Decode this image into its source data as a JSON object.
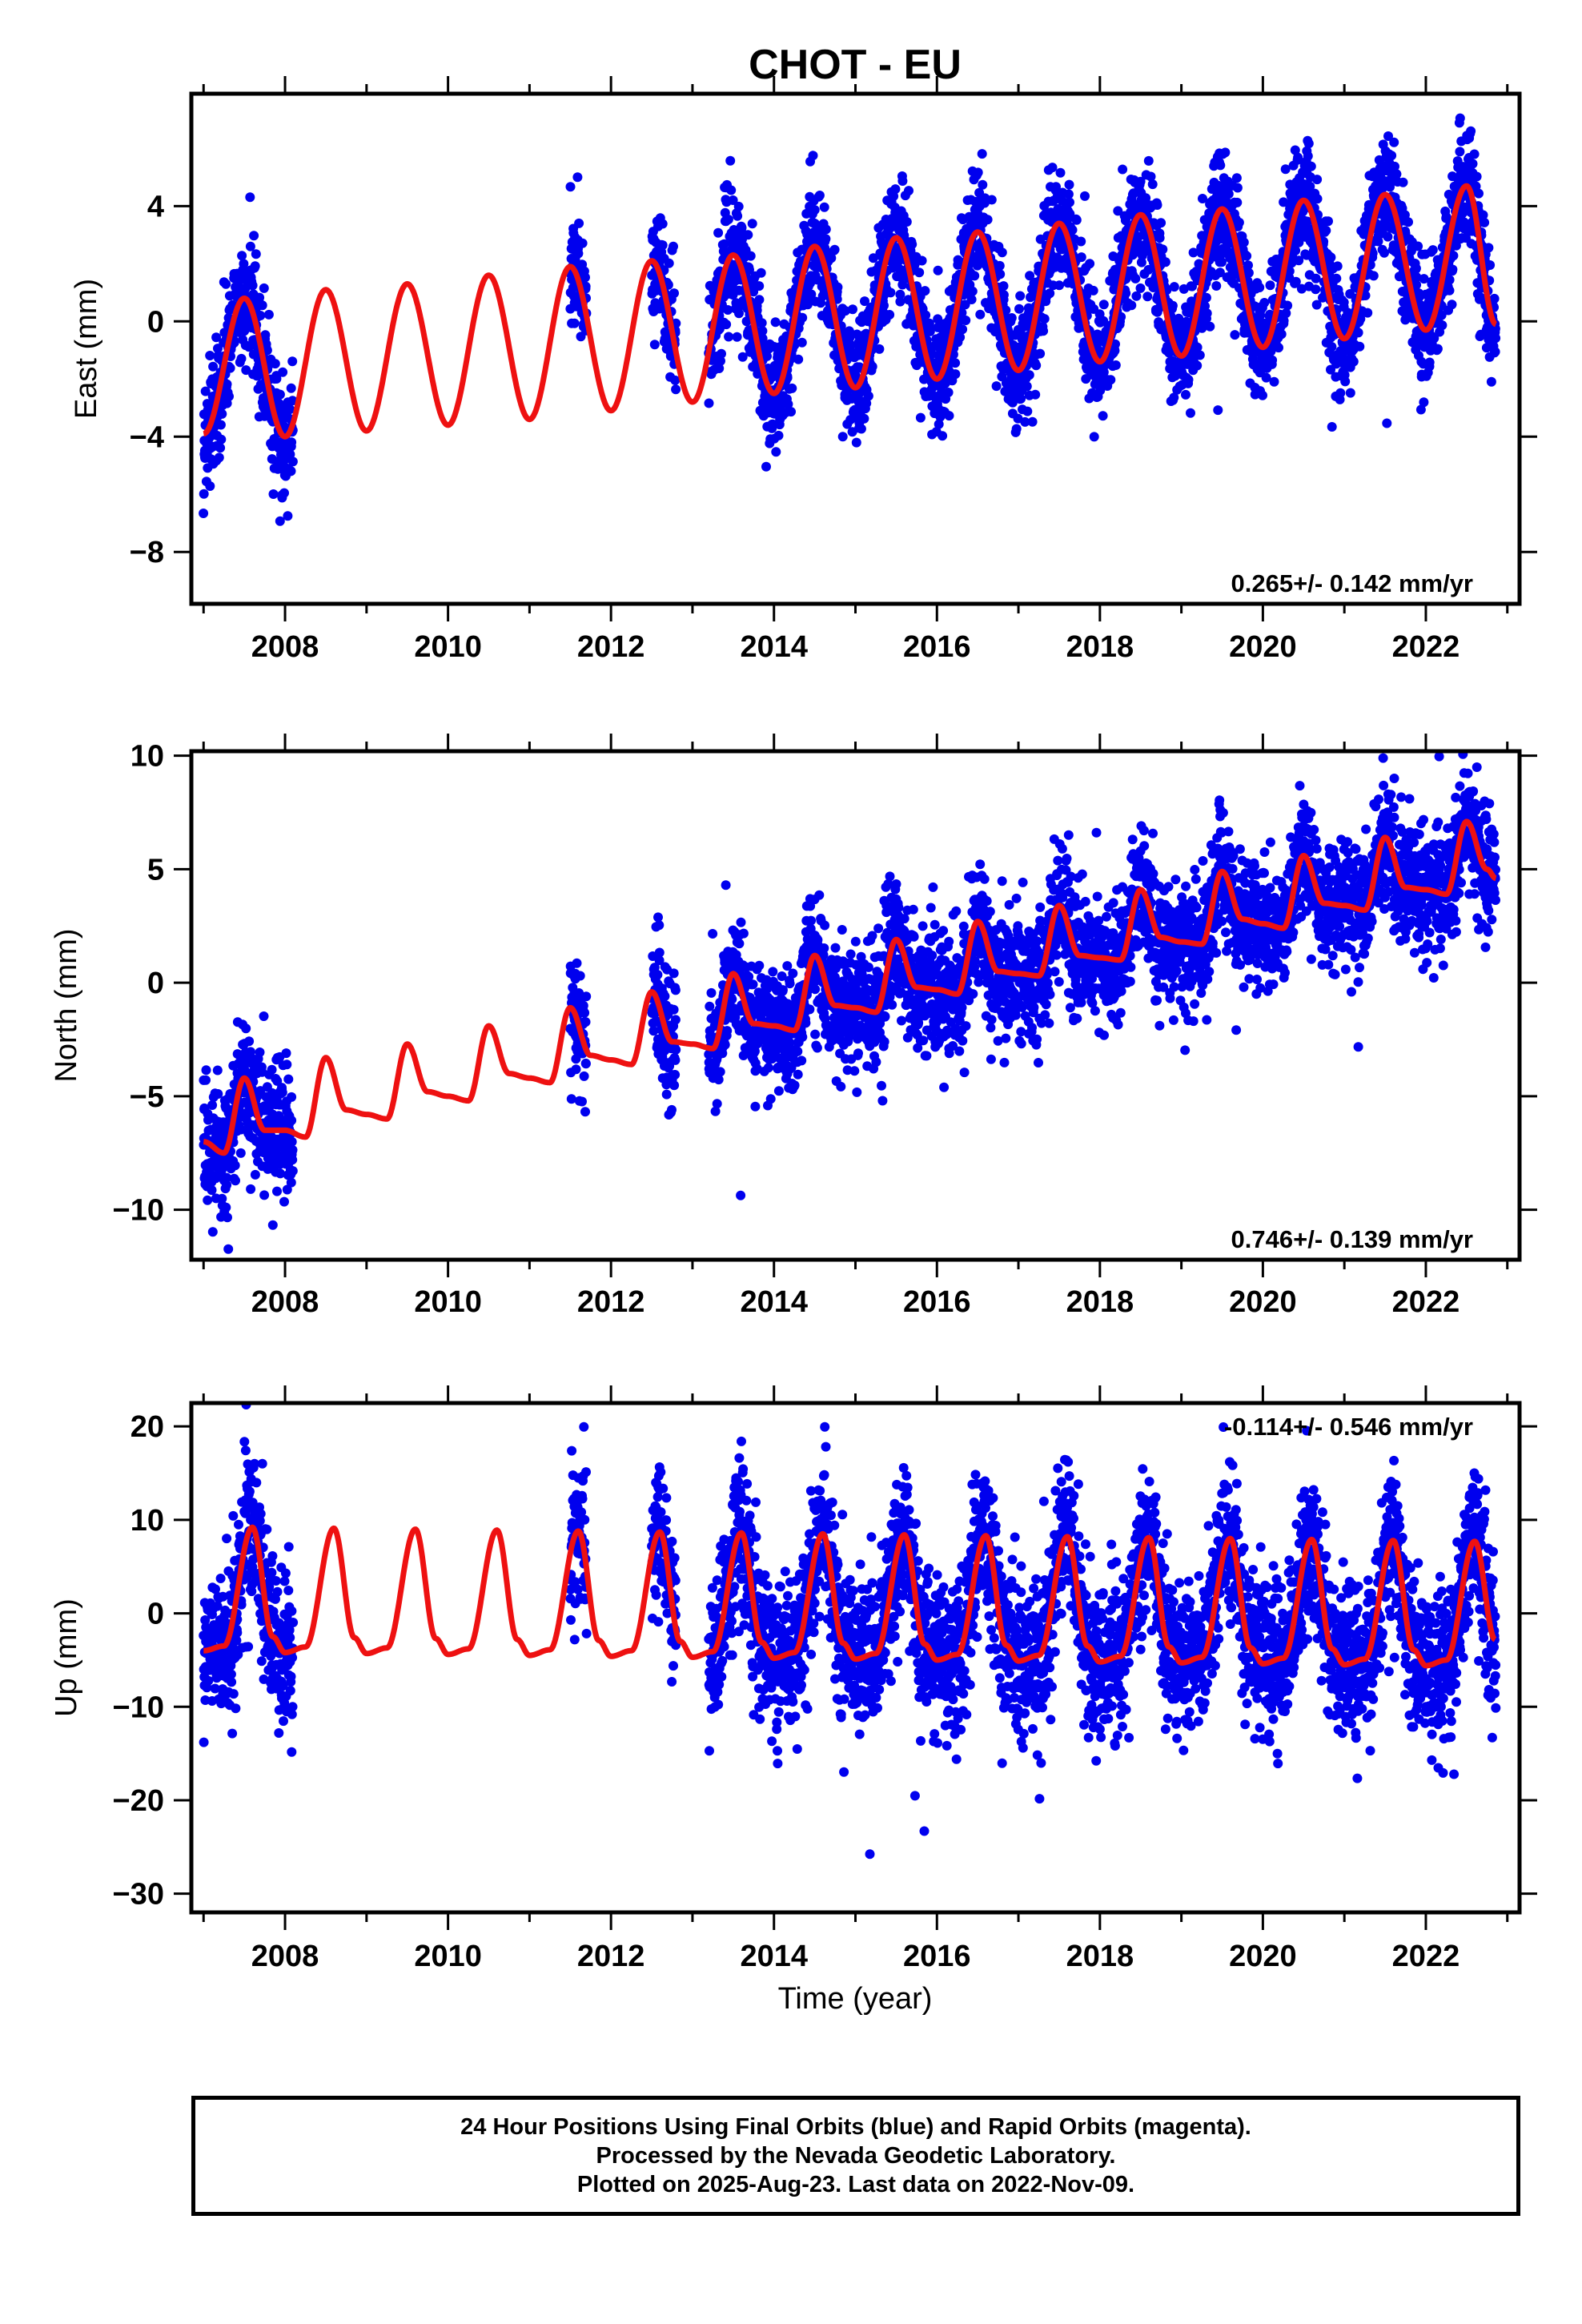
{
  "figure": {
    "title": "CHOT - EU",
    "xlabel": "Time (year)"
  },
  "colors": {
    "points": "#0000ee",
    "model": "#ee1111",
    "frame": "#000000"
  },
  "chart_data": [
    {
      "type": "scatter",
      "panel": "east",
      "ylabel": "East (mm)",
      "xlim": [
        2006.85,
        2023.15
      ],
      "ylim": [
        -9.8,
        7.9
      ],
      "yticks": [
        -8,
        -4,
        0,
        4
      ],
      "ytick_labels": [
        "−8",
        "−4",
        "0",
        "4"
      ],
      "xticks": [
        2008,
        2010,
        2012,
        2014,
        2016,
        2018,
        2020,
        2022
      ],
      "xtick_labels": [
        "2008",
        "2010",
        "2012",
        "2014",
        "2016",
        "2018",
        "2020",
        "2022"
      ],
      "rate_label": "0.265+/- 0.142 mm/yr",
      "rate_label_position": "bottom-right",
      "series": [
        {
          "kind": "points",
          "segments": [
            [
              2007.0,
              2008.1
            ],
            [
              2011.5,
              2011.7
            ],
            [
              2012.5,
              2012.8
            ],
            [
              2013.2,
              2022.86
            ]
          ],
          "model_offset": [
            -3.9,
            0.27
          ],
          "seasonal_amplitude": [
            2.4,
            2.5
          ],
          "noise_mm": 1.0
        },
        {
          "kind": "model",
          "x": [
            2007.0,
            2007.5,
            2008.0,
            2008.5,
            2009.0,
            2009.5,
            2010.0,
            2010.5,
            2011.0,
            2011.5,
            2012.0,
            2012.5,
            2013.0,
            2013.5,
            2014.0,
            2014.5,
            2015.0,
            2015.5,
            2016.0,
            2016.5,
            2017.0,
            2017.5,
            2018.0,
            2018.5,
            2019.0,
            2019.5,
            2020.0,
            2020.5,
            2021.0,
            2021.5,
            2022.0,
            2022.5,
            2022.86
          ],
          "y": [
            -3.9,
            0.8,
            -4.0,
            1.1,
            -3.8,
            1.3,
            -3.6,
            1.6,
            -3.4,
            1.9,
            -3.1,
            2.1,
            -2.8,
            2.3,
            -2.5,
            2.6,
            -2.3,
            2.9,
            -2.0,
            3.1,
            -1.7,
            3.4,
            -1.4,
            3.7,
            -1.2,
            3.9,
            -0.9,
            4.2,
            -0.6,
            4.4,
            -0.3,
            4.7,
            -0.1
          ]
        }
      ]
    },
    {
      "type": "scatter",
      "panel": "north",
      "ylabel": "North (mm)",
      "xlim": [
        2006.85,
        2023.15
      ],
      "ylim": [
        -12.2,
        10.2
      ],
      "yticks": [
        -10,
        -5,
        0,
        5,
        10
      ],
      "ytick_labels": [
        "−10",
        "−5",
        "0",
        "5",
        "10"
      ],
      "xticks": [
        2008,
        2010,
        2012,
        2014,
        2016,
        2018,
        2020,
        2022
      ],
      "xtick_labels": [
        "2008",
        "2010",
        "2012",
        "2014",
        "2016",
        "2018",
        "2020",
        "2022"
      ],
      "rate_label": "0.746+/- 0.139 mm/yr",
      "rate_label_position": "bottom-right",
      "series": [
        {
          "kind": "points",
          "segments": [
            [
              2007.0,
              2008.1
            ],
            [
              2011.5,
              2011.7
            ],
            [
              2012.5,
              2012.8
            ],
            [
              2013.2,
              2022.86
            ]
          ],
          "noise_mm": 1.3
        },
        {
          "kind": "model",
          "x": [
            2007.0,
            2007.25,
            2007.5,
            2007.75,
            2008.0,
            2008.25,
            2008.5,
            2008.75,
            2009.0,
            2009.25,
            2009.5,
            2009.75,
            2010.0,
            2010.25,
            2010.5,
            2010.75,
            2011.0,
            2011.25,
            2011.5,
            2011.75,
            2012.0,
            2012.25,
            2012.5,
            2012.75,
            2013.0,
            2013.25,
            2013.5,
            2013.75,
            2014.0,
            2014.25,
            2014.5,
            2014.75,
            2015.0,
            2015.25,
            2015.5,
            2015.75,
            2016.0,
            2016.25,
            2016.5,
            2016.75,
            2017.0,
            2017.25,
            2017.5,
            2017.75,
            2018.0,
            2018.25,
            2018.5,
            2018.75,
            2019.0,
            2019.25,
            2019.5,
            2019.75,
            2020.0,
            2020.25,
            2020.5,
            2020.75,
            2021.0,
            2021.25,
            2021.5,
            2021.75,
            2022.0,
            2022.25,
            2022.5,
            2022.75,
            2022.86
          ],
          "y": [
            -7.0,
            -7.5,
            -4.2,
            -6.5,
            -6.5,
            -6.8,
            -3.3,
            -5.6,
            -5.8,
            -6.0,
            -2.7,
            -4.8,
            -5.0,
            -5.2,
            -1.9,
            -4.0,
            -4.2,
            -4.4,
            -1.1,
            -3.2,
            -3.4,
            -3.6,
            -0.4,
            -2.6,
            -2.7,
            -2.9,
            0.4,
            -1.8,
            -1.9,
            -2.1,
            1.2,
            -1.0,
            -1.1,
            -1.3,
            1.9,
            -0.2,
            -0.3,
            -0.5,
            2.7,
            0.5,
            0.4,
            0.3,
            3.4,
            1.2,
            1.1,
            1.0,
            4.1,
            2.0,
            1.8,
            1.7,
            4.9,
            2.8,
            2.6,
            2.4,
            5.6,
            3.5,
            3.4,
            3.2,
            6.4,
            4.2,
            4.1,
            3.9,
            7.1,
            5.0,
            4.6
          ]
        }
      ]
    },
    {
      "type": "scatter",
      "panel": "up",
      "ylabel": "Up (mm)",
      "xlim": [
        2006.85,
        2023.15
      ],
      "ylim": [
        -32.0,
        22.5
      ],
      "yticks": [
        -30,
        -20,
        -10,
        0,
        10,
        20
      ],
      "ytick_labels": [
        "−30",
        "−20",
        "−10",
        "0",
        "10",
        "20"
      ],
      "xticks": [
        2008,
        2010,
        2012,
        2014,
        2016,
        2018,
        2020,
        2022
      ],
      "xtick_labels": [
        "2008",
        "2010",
        "2012",
        "2014",
        "2016",
        "2018",
        "2020",
        "2022"
      ],
      "rate_label": "-0.114+/- 0.546 mm/yr",
      "rate_label_position": "top-right",
      "series": [
        {
          "kind": "points",
          "segments": [
            [
              2007.0,
              2008.1
            ],
            [
              2011.5,
              2011.7
            ],
            [
              2012.5,
              2012.8
            ],
            [
              2013.2,
              2022.86
            ]
          ],
          "noise_mm": 4.0
        },
        {
          "kind": "model",
          "x": [
            2007.0,
            2007.25,
            2007.6,
            2007.85,
            2008.0,
            2008.25,
            2008.6,
            2008.85,
            2009.0,
            2009.25,
            2009.6,
            2009.85,
            2010.0,
            2010.25,
            2010.6,
            2010.85,
            2011.0,
            2011.25,
            2011.6,
            2011.85,
            2012.0,
            2012.25,
            2012.6,
            2012.85,
            2013.0,
            2013.25,
            2013.6,
            2013.85,
            2014.0,
            2014.25,
            2014.6,
            2014.85,
            2015.0,
            2015.25,
            2015.6,
            2015.85,
            2016.0,
            2016.25,
            2016.6,
            2016.85,
            2017.0,
            2017.25,
            2017.6,
            2017.85,
            2018.0,
            2018.25,
            2018.6,
            2018.85,
            2019.0,
            2019.25,
            2019.6,
            2019.85,
            2020.0,
            2020.25,
            2020.6,
            2020.85,
            2021.0,
            2021.25,
            2021.6,
            2021.85,
            2022.0,
            2022.25,
            2022.6,
            2022.85
          ],
          "y": [
            -4.0,
            -3.5,
            9.2,
            -2.5,
            -4.2,
            -3.6,
            9.1,
            -2.6,
            -4.3,
            -3.7,
            9.0,
            -2.7,
            -4.4,
            -3.8,
            8.9,
            -2.8,
            -4.5,
            -3.9,
            8.8,
            -2.9,
            -4.6,
            -4.0,
            8.7,
            -3.0,
            -4.7,
            -4.1,
            8.6,
            -3.1,
            -4.8,
            -4.2,
            8.5,
            -3.2,
            -4.9,
            -4.3,
            8.4,
            -3.3,
            -5.0,
            -4.4,
            8.3,
            -3.4,
            -5.1,
            -4.5,
            8.2,
            -3.5,
            -5.2,
            -4.6,
            8.1,
            -3.6,
            -5.3,
            -4.7,
            8.0,
            -3.7,
            -5.4,
            -4.8,
            7.9,
            -3.8,
            -5.5,
            -4.9,
            7.8,
            -3.9,
            -5.6,
            -5.0,
            7.7,
            -2.8
          ]
        }
      ]
    }
  ],
  "caption": {
    "line1": "24 Hour Positions Using Final Orbits (blue) and Rapid Orbits (magenta).",
    "line2": "Processed by the Nevada Geodetic Laboratory.",
    "line3": "Plotted on 2025-Aug-23. Last data on 2022-Nov-09."
  }
}
